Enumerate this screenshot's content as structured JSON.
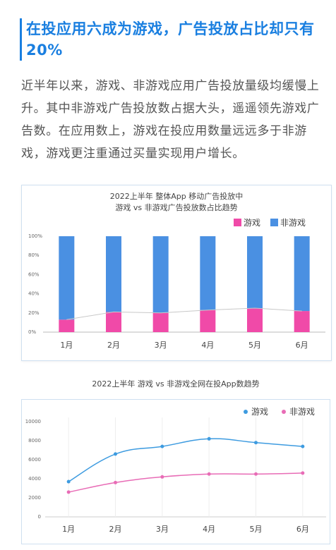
{
  "headline": "在投应用六成为游戏，广告投放占比却只有20%",
  "intro": "近半年以来，游戏、非游戏应用广告投放量级均缓慢上升。其中非游戏广告投放数占据大头，遥遥领先游戏广告数。在应用数上，游戏在投应用数量远远多于非游戏，游戏更注重通过买量实现用户增长。",
  "colors": {
    "game_bar": "#f04aa8",
    "nongame_bar": "#4a90e2",
    "game_line": "#3d9be0",
    "nongame_line": "#e86cb6"
  },
  "chart_data": [
    {
      "type": "bar",
      "stacked": true,
      "title": "2022上半年  整体App  移动广告投放中",
      "subtitle": "游戏  vs  非游戏广告投放数占比趋势",
      "categories": [
        "1月",
        "2月",
        "3月",
        "4月",
        "5月",
        "6月"
      ],
      "series": [
        {
          "name": "游戏",
          "values": [
            13,
            21,
            20,
            23,
            25,
            22
          ],
          "color": "#f04aa8"
        },
        {
          "name": "非游戏",
          "values": [
            87,
            79,
            80,
            77,
            75,
            78
          ],
          "color": "#4a90e2"
        }
      ],
      "yticks": [
        "0%",
        "20%",
        "40%",
        "60%",
        "80%",
        "100%"
      ],
      "ylim": [
        0,
        100
      ],
      "legend": "top-right",
      "grid": false
    },
    {
      "type": "line",
      "title": "2022上半年  游戏  vs  非游戏全网在投App数趋势",
      "categories": [
        "1月",
        "2月",
        "3月",
        "4月",
        "5月",
        "6月"
      ],
      "series": [
        {
          "name": "游戏",
          "values": [
            3700,
            6600,
            7400,
            8200,
            7800,
            7400
          ],
          "color": "#3d9be0"
        },
        {
          "name": "非游戏",
          "values": [
            2600,
            3600,
            4200,
            4500,
            4500,
            4600
          ],
          "color": "#e86cb6"
        }
      ],
      "yticks": [
        "0",
        "2000",
        "4000",
        "6000",
        "8000",
        "10000"
      ],
      "ylim": [
        0,
        10000
      ],
      "legend": "top-right",
      "grid": false
    }
  ]
}
